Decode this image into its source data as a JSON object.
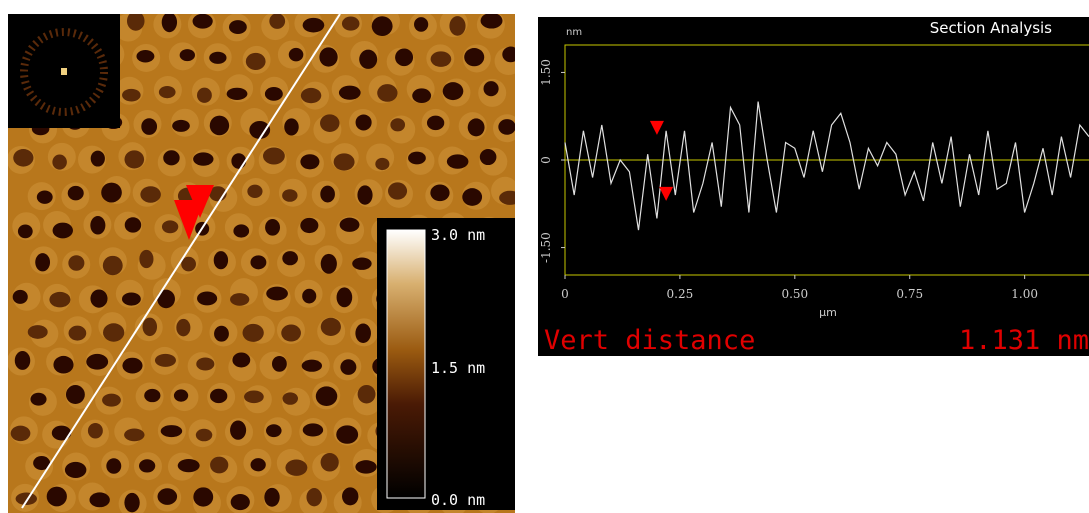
{
  "image": {
    "colorbar_labels": [
      "3.0 nm",
      "1.5 nm",
      "0.0 nm"
    ]
  },
  "chart_data": {
    "type": "line",
    "title": "Section Analysis",
    "y_unit": "nm",
    "x_label": "µm",
    "xlim": [
      0,
      1.14
    ],
    "ylim": [
      -1.97,
      1.97
    ],
    "xticks": [
      0,
      0.25,
      {
        "value": 0.5,
        "label": "0.50"
      },
      0.75,
      {
        "value": 1.0,
        "label": "1.00"
      }
    ],
    "yticks": [
      {
        "value": 1.5,
        "label": "1.50"
      },
      0,
      {
        "value": -1.5,
        "label": "-1.50"
      }
    ],
    "color": "#e0e0e0",
    "zero_line_color": "#c8c800",
    "x": [
      0,
      0.02,
      0.04,
      0.06,
      0.08,
      0.1,
      0.12,
      0.14,
      0.16,
      0.18,
      0.2,
      0.22,
      0.24,
      0.26,
      0.28,
      0.3,
      0.32,
      0.34,
      0.36,
      0.38,
      0.4,
      0.42,
      0.44,
      0.46,
      0.48,
      0.5,
      0.52,
      0.54,
      0.56,
      0.58,
      0.6,
      0.62,
      0.64,
      0.66,
      0.68,
      0.7,
      0.72,
      0.74,
      0.76,
      0.78,
      0.8,
      0.82,
      0.84,
      0.86,
      0.88,
      0.9,
      0.92,
      0.94,
      0.96,
      0.98,
      1.0,
      1.02,
      1.04,
      1.06,
      1.08,
      1.1,
      1.12,
      1.14
    ],
    "values": [
      0.3,
      -0.6,
      0.5,
      -0.3,
      0.6,
      -0.4,
      0.0,
      -0.2,
      -1.2,
      0.1,
      -1.0,
      0.5,
      -0.6,
      0.5,
      -0.9,
      -0.4,
      0.3,
      -0.8,
      0.9,
      0.6,
      -0.9,
      1.0,
      0.0,
      -0.9,
      0.3,
      0.2,
      -0.3,
      0.5,
      -0.2,
      0.6,
      0.8,
      0.3,
      -0.5,
      0.2,
      -0.1,
      0.3,
      0.1,
      -0.6,
      -0.2,
      -0.7,
      0.3,
      -0.4,
      0.4,
      -0.8,
      0.1,
      -0.6,
      0.5,
      -0.5,
      -0.4,
      0.3,
      -0.9,
      -0.4,
      0.2,
      -0.6,
      0.4,
      -0.3,
      0.6,
      0.4
    ],
    "cursors": [
      {
        "x": 0.2,
        "y": 0.43
      },
      {
        "x": 0.22,
        "y": -0.7
      }
    ],
    "cursor_color": "#ff0000",
    "annotation_label": "Vert distance",
    "annotation_value": "1.131 nm"
  }
}
